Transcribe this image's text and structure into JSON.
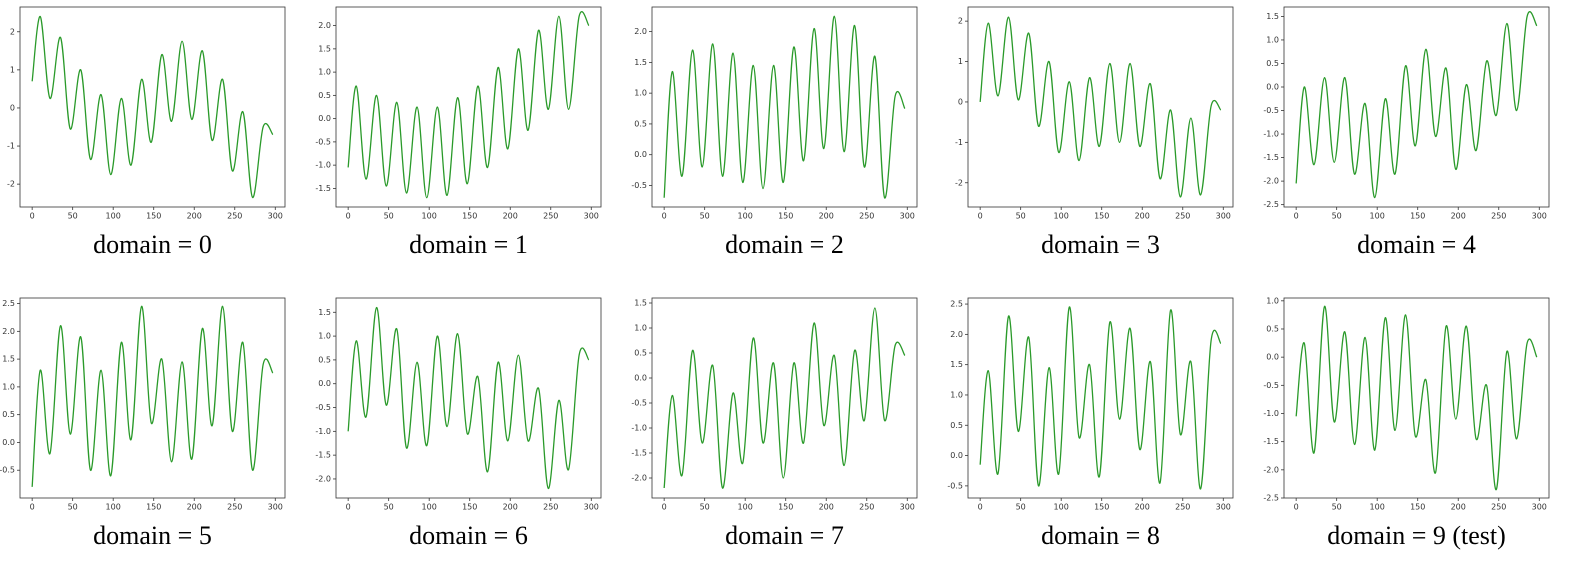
{
  "chart_data": [
    {
      "type": "line",
      "title": "domain = 0",
      "x": [
        0,
        10,
        22,
        35,
        47,
        60,
        72,
        85,
        97,
        110,
        122,
        135,
        147,
        160,
        172,
        185,
        197,
        210,
        222,
        235,
        247,
        260,
        272,
        285,
        297
      ],
      "series": [
        {
          "color": "#2a9a2a",
          "values": [
            0.7,
            2.4,
            0.25,
            1.85,
            -0.55,
            1.0,
            -1.35,
            0.35,
            -1.75,
            0.25,
            -1.5,
            0.75,
            -0.9,
            1.4,
            -0.35,
            1.75,
            -0.3,
            1.5,
            -0.85,
            0.75,
            -1.65,
            -0.1,
            -2.35,
            -0.5,
            -0.7
          ]
        }
      ],
      "xlim": [
        -15,
        312
      ],
      "xticks": [
        0,
        50,
        100,
        150,
        200,
        250,
        300
      ],
      "ylim": [
        -2.6,
        2.65
      ],
      "yticks": [
        -2,
        -1,
        0,
        1,
        2
      ]
    },
    {
      "type": "line",
      "title": "domain = 1",
      "x": [
        0,
        10,
        22,
        35,
        47,
        60,
        72,
        85,
        97,
        110,
        122,
        135,
        147,
        160,
        172,
        185,
        197,
        210,
        222,
        235,
        247,
        260,
        272,
        285,
        297
      ],
      "series": [
        {
          "color": "#2a9a2a",
          "values": [
            -1.05,
            0.7,
            -1.3,
            0.5,
            -1.45,
            0.35,
            -1.6,
            0.25,
            -1.7,
            0.25,
            -1.65,
            0.45,
            -1.4,
            0.7,
            -1.05,
            1.1,
            -0.65,
            1.5,
            -0.25,
            1.9,
            0.2,
            2.2,
            0.2,
            2.2,
            2.0
          ]
        }
      ],
      "xlim": [
        -15,
        312
      ],
      "xticks": [
        0,
        50,
        100,
        150,
        200,
        250,
        300
      ],
      "ylim": [
        -1.9,
        2.4
      ],
      "yticks": [
        -1.5,
        {
          "value": -1,
          "label": "-1.0"
        },
        -0.5,
        {
          "value": 0,
          "label": "0.0"
        },
        0.5,
        {
          "value": 1,
          "label": "1.0"
        },
        1.5,
        {
          "value": 2,
          "label": "2.0"
        }
      ]
    },
    {
      "type": "line",
      "title": "domain = 2",
      "x": [
        0,
        10,
        22,
        35,
        47,
        60,
        72,
        85,
        97,
        110,
        122,
        135,
        147,
        160,
        172,
        185,
        197,
        210,
        222,
        235,
        247,
        260,
        272,
        285,
        297
      ],
      "series": [
        {
          "color": "#2a9a2a",
          "values": [
            -0.7,
            1.35,
            -0.35,
            1.7,
            -0.2,
            1.8,
            -0.35,
            1.65,
            -0.45,
            1.45,
            -0.55,
            1.45,
            -0.45,
            1.75,
            -0.1,
            2.05,
            0.1,
            2.25,
            0.05,
            2.1,
            -0.2,
            1.6,
            -0.7,
            0.95,
            0.75
          ]
        }
      ],
      "xlim": [
        -15,
        312
      ],
      "xticks": [
        0,
        50,
        100,
        150,
        200,
        250,
        300
      ],
      "ylim": [
        -0.85,
        2.4
      ],
      "yticks": [
        -0.5,
        {
          "value": 0,
          "label": "0.0"
        },
        0.5,
        {
          "value": 1,
          "label": "1.0"
        },
        1.5,
        {
          "value": 2,
          "label": "2.0"
        }
      ]
    },
    {
      "type": "line",
      "title": "domain = 3",
      "x": [
        0,
        10,
        22,
        35,
        47,
        60,
        72,
        85,
        97,
        110,
        122,
        135,
        147,
        160,
        172,
        185,
        197,
        210,
        222,
        235,
        247,
        260,
        272,
        285,
        297
      ],
      "series": [
        {
          "color": "#2a9a2a",
          "values": [
            0,
            1.95,
            0.15,
            2.1,
            0.05,
            1.7,
            -0.6,
            1.0,
            -1.25,
            0.5,
            -1.45,
            0.6,
            -1.1,
            0.95,
            -1.0,
            0.95,
            -1.1,
            0.45,
            -1.9,
            -0.2,
            -2.35,
            -0.4,
            -2.3,
            -0.1,
            -0.2
          ]
        }
      ],
      "xlim": [
        -15,
        312
      ],
      "xticks": [
        0,
        50,
        100,
        150,
        200,
        250,
        300
      ],
      "ylim": [
        -2.6,
        2.35
      ],
      "yticks": [
        -2,
        -1,
        0,
        1,
        2
      ]
    },
    {
      "type": "line",
      "title": "domain = 4",
      "x": [
        0,
        10,
        22,
        35,
        47,
        60,
        72,
        85,
        97,
        110,
        122,
        135,
        147,
        160,
        172,
        185,
        197,
        210,
        222,
        235,
        247,
        260,
        272,
        285,
        297
      ],
      "series": [
        {
          "color": "#2a9a2a",
          "values": [
            -2.05,
            0.0,
            -1.65,
            0.2,
            -1.6,
            0.2,
            -1.85,
            -0.35,
            -2.35,
            -0.25,
            -1.85,
            0.45,
            -1.25,
            0.8,
            -1.05,
            0.4,
            -1.75,
            0.05,
            -1.35,
            0.55,
            -0.6,
            1.35,
            -0.5,
            1.5,
            1.3
          ]
        }
      ],
      "xlim": [
        -15,
        312
      ],
      "xticks": [
        0,
        50,
        100,
        150,
        200,
        250,
        300
      ],
      "ylim": [
        -2.55,
        1.7
      ],
      "yticks": [
        -2.5,
        {
          "value": -2,
          "label": "-2.0"
        },
        -1.5,
        {
          "value": -1,
          "label": "-1.0"
        },
        -0.5,
        {
          "value": 0,
          "label": "0.0"
        },
        0.5,
        {
          "value": 1,
          "label": "1.0"
        },
        1.5
      ]
    },
    {
      "type": "line",
      "title": "domain = 5",
      "x": [
        0,
        10,
        22,
        35,
        47,
        60,
        72,
        85,
        97,
        110,
        122,
        135,
        147,
        160,
        172,
        185,
        197,
        210,
        222,
        235,
        247,
        260,
        272,
        285,
        297
      ],
      "series": [
        {
          "color": "#2a9a2a",
          "values": [
            -0.8,
            1.3,
            -0.2,
            2.1,
            0.15,
            1.9,
            -0.5,
            1.3,
            -0.6,
            1.8,
            0.05,
            2.45,
            0.35,
            1.5,
            -0.35,
            1.45,
            -0.3,
            2.05,
            0.3,
            2.45,
            0.2,
            1.8,
            -0.5,
            1.4,
            1.25
          ]
        }
      ],
      "xlim": [
        -15,
        312
      ],
      "xticks": [
        0,
        50,
        100,
        150,
        200,
        250,
        300
      ],
      "ylim": [
        -1.0,
        2.6
      ],
      "yticks": [
        -0.5,
        {
          "value": 0,
          "label": "0.0"
        },
        0.5,
        {
          "value": 1,
          "label": "1.0"
        },
        1.5,
        {
          "value": 2,
          "label": "2.0"
        },
        2.5
      ]
    },
    {
      "type": "line",
      "title": "domain = 6",
      "x": [
        0,
        10,
        22,
        35,
        47,
        60,
        72,
        85,
        97,
        110,
        122,
        135,
        147,
        160,
        172,
        185,
        197,
        210,
        222,
        235,
        247,
        260,
        272,
        285,
        297
      ],
      "series": [
        {
          "color": "#2a9a2a",
          "values": [
            -1.0,
            0.9,
            -0.7,
            1.6,
            -0.45,
            1.15,
            -1.35,
            0.45,
            -1.3,
            1.0,
            -0.9,
            1.05,
            -1.05,
            0.15,
            -1.85,
            0.45,
            -1.2,
            0.6,
            -1.2,
            -0.1,
            -2.2,
            -0.35,
            -1.8,
            0.6,
            0.5
          ]
        }
      ],
      "xlim": [
        -15,
        312
      ],
      "xticks": [
        0,
        50,
        100,
        150,
        200,
        250,
        300
      ],
      "ylim": [
        -2.4,
        1.8
      ],
      "yticks": [
        {
          "value": -2,
          "label": "-2.0"
        },
        -1.5,
        {
          "value": -1,
          "label": "-1.0"
        },
        -0.5,
        {
          "value": 0,
          "label": "0.0"
        },
        0.5,
        {
          "value": 1,
          "label": "1.0"
        },
        1.5
      ]
    },
    {
      "type": "line",
      "title": "domain = 7",
      "x": [
        0,
        10,
        22,
        35,
        47,
        60,
        72,
        85,
        97,
        110,
        122,
        135,
        147,
        160,
        172,
        185,
        197,
        210,
        222,
        235,
        247,
        260,
        272,
        285,
        297
      ],
      "series": [
        {
          "color": "#2a9a2a",
          "values": [
            -2.2,
            -0.35,
            -1.95,
            0.55,
            -1.3,
            0.25,
            -2.2,
            -0.3,
            -1.7,
            0.8,
            -1.3,
            0.3,
            -2.0,
            0.3,
            -1.3,
            1.1,
            -0.95,
            0.45,
            -1.75,
            0.55,
            -0.85,
            1.4,
            -0.85,
            0.65,
            0.45
          ]
        }
      ],
      "xlim": [
        -15,
        312
      ],
      "xticks": [
        0,
        50,
        100,
        150,
        200,
        250,
        300
      ],
      "ylim": [
        -2.4,
        1.6
      ],
      "yticks": [
        {
          "value": -2,
          "label": "-2.0"
        },
        -1.5,
        {
          "value": -1,
          "label": "-1.0"
        },
        -0.5,
        {
          "value": 0,
          "label": "0.0"
        },
        0.5,
        {
          "value": 1,
          "label": "1.0"
        },
        1.5
      ]
    },
    {
      "type": "line",
      "title": "domain = 8",
      "x": [
        0,
        10,
        22,
        35,
        47,
        60,
        72,
        85,
        97,
        110,
        122,
        135,
        147,
        160,
        172,
        185,
        197,
        210,
        222,
        235,
        247,
        260,
        272,
        285,
        297
      ],
      "series": [
        {
          "color": "#2a9a2a",
          "values": [
            -0.15,
            1.4,
            -0.3,
            2.3,
            0.4,
            1.95,
            -0.5,
            1.45,
            -0.3,
            2.45,
            0.3,
            1.5,
            -0.35,
            2.2,
            0.6,
            2.1,
            0.1,
            1.55,
            -0.45,
            2.4,
            0.35,
            1.55,
            -0.55,
            1.9,
            1.85
          ]
        }
      ],
      "xlim": [
        -15,
        312
      ],
      "xticks": [
        0,
        50,
        100,
        150,
        200,
        250,
        300
      ],
      "ylim": [
        -0.7,
        2.6
      ],
      "yticks": [
        -0.5,
        {
          "value": 0,
          "label": "0.0"
        },
        0.5,
        {
          "value": 1,
          "label": "1.0"
        },
        1.5,
        {
          "value": 2,
          "label": "2.0"
        },
        2.5
      ]
    },
    {
      "type": "line",
      "title": "domain = 9 (test)",
      "x": [
        0,
        10,
        22,
        35,
        47,
        60,
        72,
        85,
        97,
        110,
        122,
        135,
        147,
        160,
        172,
        185,
        197,
        210,
        222,
        235,
        247,
        260,
        272,
        285,
        297
      ],
      "series": [
        {
          "color": "#2a9a2a",
          "values": [
            -1.05,
            0.25,
            -1.7,
            0.9,
            -1.15,
            0.45,
            -1.55,
            0.35,
            -1.65,
            0.7,
            -1.3,
            0.75,
            -1.4,
            -0.4,
            -2.05,
            0.55,
            -1.1,
            0.55,
            -1.45,
            -0.5,
            -2.35,
            0.1,
            -1.45,
            0.25,
            0.0
          ]
        }
      ],
      "xlim": [
        -15,
        312
      ],
      "xticks": [
        0,
        50,
        100,
        150,
        200,
        250,
        300
      ],
      "ylim": [
        -2.5,
        1.05
      ],
      "yticks": [
        -2.5,
        {
          "value": -2,
          "label": "-2.0"
        },
        -1.5,
        {
          "value": -1,
          "label": "-1.0"
        },
        -0.5,
        {
          "value": 0,
          "label": "0.0"
        },
        0.5,
        {
          "value": 1,
          "label": "1.0"
        }
      ]
    }
  ]
}
